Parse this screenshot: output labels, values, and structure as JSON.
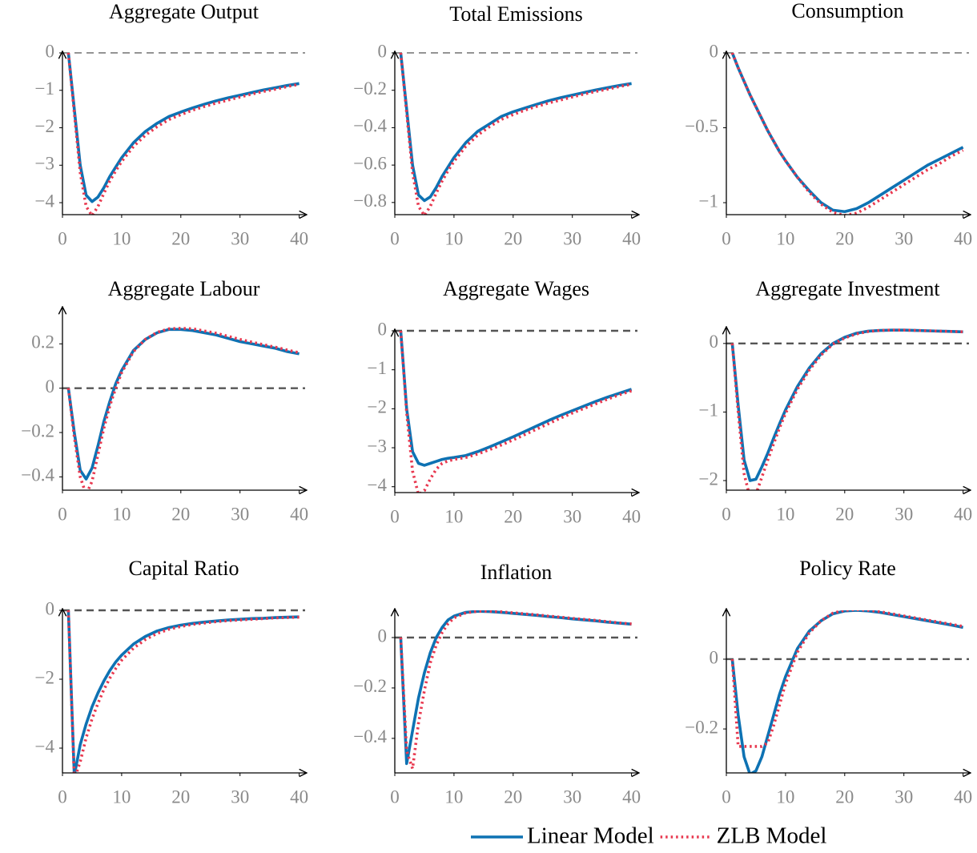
{
  "chart_data": [
    {
      "type": "line",
      "title": "Aggregate Output",
      "x": [
        1,
        2,
        3,
        4,
        5,
        6,
        7,
        8,
        9,
        10,
        12,
        14,
        16,
        18,
        20,
        22,
        24,
        26,
        28,
        30,
        32,
        34,
        36,
        38,
        40
      ],
      "series": [
        {
          "color": "#0e72b3",
          "style": "solid",
          "values": [
            0,
            -1.5,
            -3.0,
            -3.8,
            -3.97,
            -3.85,
            -3.6,
            -3.3,
            -3.05,
            -2.8,
            -2.4,
            -2.1,
            -1.88,
            -1.7,
            -1.58,
            -1.47,
            -1.37,
            -1.28,
            -1.2,
            -1.13,
            -1.06,
            -0.99,
            -0.93,
            -0.87,
            -0.82
          ]
        },
        {
          "color": "#e8384f",
          "style": "dotted",
          "values": [
            0,
            -1.6,
            -3.2,
            -4.1,
            -4.35,
            -4.1,
            -3.75,
            -3.42,
            -3.15,
            -2.9,
            -2.5,
            -2.2,
            -1.97,
            -1.78,
            -1.65,
            -1.53,
            -1.43,
            -1.34,
            -1.26,
            -1.18,
            -1.1,
            -1.03,
            -0.97,
            -0.9,
            -0.84
          ]
        }
      ],
      "xlim": [
        0,
        41
      ],
      "xticks": [
        0,
        10,
        20,
        30,
        40
      ],
      "ylim": [
        -4.32,
        0
      ],
      "yticks": [
        0,
        {
          "value": -1,
          "label": "−1"
        },
        {
          "value": -2,
          "label": "−2"
        },
        {
          "value": -3,
          "label": "−3"
        },
        {
          "value": -4,
          "label": "−4"
        }
      ],
      "hline": 0
    },
    {
      "type": "line",
      "title": "Total Emissions",
      "x": [
        1,
        2,
        3,
        4,
        5,
        6,
        7,
        8,
        9,
        10,
        12,
        14,
        16,
        18,
        20,
        22,
        24,
        26,
        28,
        30,
        32,
        34,
        36,
        38,
        40
      ],
      "series": [
        {
          "color": "#0e72b3",
          "style": "solid",
          "values": [
            0,
            -0.3,
            -0.6,
            -0.76,
            -0.79,
            -0.77,
            -0.72,
            -0.66,
            -0.61,
            -0.56,
            -0.48,
            -0.42,
            -0.38,
            -0.34,
            -0.315,
            -0.295,
            -0.275,
            -0.256,
            -0.24,
            -0.226,
            -0.212,
            -0.198,
            -0.186,
            -0.174,
            -0.164
          ]
        },
        {
          "color": "#e8384f",
          "style": "dotted",
          "values": [
            0,
            -0.32,
            -0.64,
            -0.82,
            -0.87,
            -0.82,
            -0.75,
            -0.685,
            -0.63,
            -0.58,
            -0.5,
            -0.44,
            -0.395,
            -0.356,
            -0.33,
            -0.306,
            -0.286,
            -0.268,
            -0.252,
            -0.236,
            -0.22,
            -0.206,
            -0.194,
            -0.18,
            -0.168
          ]
        }
      ],
      "xlim": [
        0,
        41
      ],
      "xticks": [
        0,
        10,
        20,
        30,
        40
      ],
      "ylim": [
        -0.865,
        0
      ],
      "yticks": [
        0,
        {
          "value": -0.2,
          "label": "−0.2"
        },
        {
          "value": -0.4,
          "label": "−0.4"
        },
        {
          "value": -0.6,
          "label": "−0.6"
        },
        {
          "value": -0.8,
          "label": "−0.8"
        }
      ],
      "hline": 0
    },
    {
      "type": "line",
      "title": "Consumption",
      "x": [
        1,
        2,
        3,
        4,
        5,
        6,
        7,
        8,
        9,
        10,
        12,
        14,
        16,
        18,
        20,
        22,
        24,
        26,
        28,
        30,
        32,
        34,
        36,
        38,
        40
      ],
      "series": [
        {
          "color": "#0e72b3",
          "style": "solid",
          "values": [
            0,
            -0.1,
            -0.19,
            -0.28,
            -0.36,
            -0.44,
            -0.52,
            -0.59,
            -0.66,
            -0.72,
            -0.83,
            -0.92,
            -1.0,
            -1.05,
            -1.06,
            -1.04,
            -1.0,
            -0.95,
            -0.9,
            -0.85,
            -0.8,
            -0.75,
            -0.71,
            -0.67,
            -0.63
          ]
        },
        {
          "color": "#e8384f",
          "style": "dotted",
          "values": [
            0,
            -0.1,
            -0.19,
            -0.28,
            -0.36,
            -0.44,
            -0.52,
            -0.59,
            -0.66,
            -0.72,
            -0.83,
            -0.93,
            -1.01,
            -1.065,
            -1.085,
            -1.07,
            -1.03,
            -0.98,
            -0.93,
            -0.88,
            -0.83,
            -0.78,
            -0.74,
            -0.69,
            -0.65
          ]
        }
      ],
      "xlim": [
        0,
        41
      ],
      "xticks": [
        0,
        10,
        20,
        30,
        40
      ],
      "ylim": [
        -1.08,
        0
      ],
      "yticks": [
        0,
        {
          "value": -0.5,
          "label": "−0.5"
        },
        {
          "value": -1,
          "label": "−1"
        }
      ],
      "hline": 0
    },
    {
      "type": "line",
      "title": "Aggregate Labour",
      "x": [
        1,
        2,
        3,
        4,
        5,
        6,
        7,
        8,
        9,
        10,
        12,
        14,
        16,
        18,
        20,
        22,
        24,
        26,
        28,
        30,
        32,
        34,
        36,
        38,
        40
      ],
      "series": [
        {
          "color": "#0e72b3",
          "style": "solid",
          "values": [
            0,
            -0.2,
            -0.37,
            -0.41,
            -0.36,
            -0.26,
            -0.15,
            -0.06,
            0.02,
            0.08,
            0.17,
            0.22,
            0.25,
            0.265,
            0.265,
            0.26,
            0.25,
            0.24,
            0.225,
            0.21,
            0.2,
            0.19,
            0.18,
            0.165,
            0.155
          ]
        },
        {
          "color": "#e8384f",
          "style": "dotted",
          "values": [
            0,
            -0.22,
            -0.4,
            -0.48,
            -0.42,
            -0.3,
            -0.18,
            -0.08,
            0.0,
            0.07,
            0.165,
            0.22,
            0.252,
            0.268,
            0.27,
            0.268,
            0.258,
            0.248,
            0.234,
            0.22,
            0.208,
            0.196,
            0.185,
            0.172,
            0.16
          ]
        }
      ],
      "xlim": [
        0,
        41
      ],
      "xticks": [
        0,
        10,
        20,
        30,
        40
      ],
      "ylim": [
        -0.46,
        0.36
      ],
      "yticks": [
        0.2,
        0,
        {
          "value": -0.2,
          "label": "−0.2"
        },
        {
          "value": -0.4,
          "label": "−0.4"
        }
      ],
      "hline": 0
    },
    {
      "type": "line",
      "title": "Aggregate Wages",
      "x": [
        1,
        2,
        3,
        4,
        5,
        6,
        7,
        8,
        9,
        10,
        12,
        14,
        16,
        18,
        20,
        22,
        24,
        26,
        28,
        30,
        32,
        34,
        36,
        38,
        40
      ],
      "series": [
        {
          "color": "#0e72b3",
          "style": "solid",
          "values": [
            0,
            -2.0,
            -3.1,
            -3.4,
            -3.45,
            -3.4,
            -3.35,
            -3.3,
            -3.27,
            -3.25,
            -3.2,
            -3.1,
            -2.98,
            -2.85,
            -2.72,
            -2.58,
            -2.44,
            -2.3,
            -2.17,
            -2.05,
            -1.93,
            -1.81,
            -1.7,
            -1.6,
            -1.5
          ]
        },
        {
          "color": "#e8384f",
          "style": "dotted",
          "values": [
            0,
            -2.1,
            -3.6,
            -4.2,
            -4.1,
            -3.8,
            -3.55,
            -3.4,
            -3.34,
            -3.3,
            -3.25,
            -3.16,
            -3.05,
            -2.93,
            -2.8,
            -2.66,
            -2.52,
            -2.38,
            -2.24,
            -2.11,
            -1.99,
            -1.87,
            -1.75,
            -1.64,
            -1.54
          ]
        }
      ],
      "xlim": [
        0,
        41
      ],
      "xticks": [
        0,
        10,
        20,
        30,
        40
      ],
      "ylim": [
        -4.15,
        0
      ],
      "yticks": [
        0,
        {
          "value": -1,
          "label": "−1"
        },
        {
          "value": -2,
          "label": "−2"
        },
        {
          "value": -3,
          "label": "−3"
        },
        {
          "value": -4,
          "label": "−4"
        }
      ],
      "hline": 0
    },
    {
      "type": "line",
      "title": "Aggregate Investment",
      "x": [
        1,
        2,
        3,
        4,
        5,
        6,
        7,
        8,
        9,
        10,
        12,
        14,
        16,
        18,
        20,
        22,
        24,
        26,
        28,
        30,
        32,
        34,
        36,
        38,
        40
      ],
      "series": [
        {
          "color": "#0e72b3",
          "style": "solid",
          "values": [
            0,
            -0.9,
            -1.7,
            -2.0,
            -1.98,
            -1.8,
            -1.6,
            -1.38,
            -1.17,
            -0.97,
            -0.63,
            -0.36,
            -0.15,
            0.0,
            0.09,
            0.15,
            0.18,
            0.19,
            0.195,
            0.195,
            0.19,
            0.185,
            0.18,
            0.175,
            0.17
          ]
        },
        {
          "color": "#e8384f",
          "style": "dotted",
          "values": [
            0,
            -1.0,
            -1.9,
            -2.25,
            -2.2,
            -1.95,
            -1.7,
            -1.46,
            -1.23,
            -1.02,
            -0.67,
            -0.39,
            -0.17,
            -0.01,
            0.08,
            0.14,
            0.175,
            0.19,
            0.195,
            0.195,
            0.19,
            0.185,
            0.18,
            0.175,
            0.17
          ]
        }
      ],
      "xlim": [
        0,
        41
      ],
      "xticks": [
        0,
        10,
        20,
        30,
        40
      ],
      "ylim": [
        -2.14,
        0.22
      ],
      "yticks": [
        0,
        {
          "value": -1,
          "label": "−1"
        },
        {
          "value": -2,
          "label": "−2"
        }
      ],
      "hline": 0
    },
    {
      "type": "line",
      "title": "Capital Ratio",
      "x": [
        1,
        2,
        3,
        4,
        5,
        6,
        7,
        8,
        9,
        10,
        12,
        14,
        16,
        18,
        20,
        22,
        24,
        26,
        28,
        30,
        32,
        34,
        36,
        38,
        40
      ],
      "series": [
        {
          "color": "#0e72b3",
          "style": "solid",
          "values": [
            0,
            -4.8,
            -3.9,
            -3.3,
            -2.8,
            -2.4,
            -2.05,
            -1.75,
            -1.5,
            -1.3,
            -0.98,
            -0.76,
            -0.6,
            -0.5,
            -0.43,
            -0.38,
            -0.34,
            -0.31,
            -0.28,
            -0.26,
            -0.24,
            -0.23,
            -0.21,
            -0.2,
            -0.19
          ]
        },
        {
          "color": "#e8384f",
          "style": "dotted",
          "values": [
            0,
            -4.9,
            -4.4,
            -3.7,
            -3.15,
            -2.7,
            -2.3,
            -1.97,
            -1.69,
            -1.45,
            -1.1,
            -0.85,
            -0.67,
            -0.55,
            -0.47,
            -0.41,
            -0.37,
            -0.33,
            -0.3,
            -0.28,
            -0.26,
            -0.24,
            -0.22,
            -0.21,
            -0.2
          ]
        }
      ],
      "xlim": [
        0,
        41
      ],
      "xticks": [
        0,
        10,
        20,
        30,
        40
      ],
      "ylim": [
        -4.72,
        0
      ],
      "yticks": [
        0,
        {
          "value": -2,
          "label": "−2"
        },
        {
          "value": -4,
          "label": "−4"
        }
      ],
      "hline": 0
    },
    {
      "type": "line",
      "title": "Inflation",
      "x": [
        1,
        2,
        3,
        4,
        5,
        6,
        7,
        8,
        9,
        10,
        12,
        14,
        16,
        18,
        20,
        22,
        24,
        26,
        28,
        30,
        32,
        34,
        36,
        38,
        40
      ],
      "series": [
        {
          "color": "#0e72b3",
          "style": "solid",
          "values": [
            0,
            -0.5,
            -0.37,
            -0.24,
            -0.14,
            -0.06,
            0.0,
            0.04,
            0.07,
            0.085,
            0.1,
            0.104,
            0.103,
            0.1,
            0.096,
            0.092,
            0.088,
            0.083,
            0.079,
            0.074,
            0.07,
            0.066,
            0.061,
            0.057,
            0.053
          ]
        },
        {
          "color": "#e8384f",
          "style": "dotted",
          "values": [
            0,
            -0.45,
            -0.52,
            -0.34,
            -0.21,
            -0.1,
            -0.03,
            0.02,
            0.055,
            0.078,
            0.098,
            0.104,
            0.104,
            0.102,
            0.098,
            0.094,
            0.09,
            0.085,
            0.081,
            0.076,
            0.072,
            0.068,
            0.063,
            0.058,
            0.054
          ]
        }
      ],
      "xlim": [
        0,
        41
      ],
      "xticks": [
        0,
        10,
        20,
        30,
        40
      ],
      "ylim": [
        -0.537,
        0.108
      ],
      "yticks": [
        0,
        {
          "value": -0.2,
          "label": "−0.2"
        },
        {
          "value": -0.4,
          "label": "−0.4"
        }
      ],
      "hline": 0
    },
    {
      "type": "line",
      "title": "Policy Rate",
      "x": [
        1,
        2,
        3,
        4,
        5,
        6,
        7,
        8,
        9,
        10,
        12,
        14,
        16,
        18,
        20,
        22,
        24,
        26,
        28,
        30,
        32,
        34,
        36,
        38,
        40
      ],
      "series": [
        {
          "name": "Linear Model",
          "color": "#0e72b3",
          "style": "solid",
          "values": [
            0,
            -0.16,
            -0.28,
            -0.33,
            -0.32,
            -0.28,
            -0.22,
            -0.16,
            -0.1,
            -0.05,
            0.03,
            0.08,
            0.11,
            0.13,
            0.138,
            0.14,
            0.138,
            0.134,
            0.128,
            0.122,
            0.116,
            0.11,
            0.104,
            0.098,
            0.091
          ]
        },
        {
          "name": "ZLB Model",
          "color": "#e8384f",
          "style": "dotted",
          "values": [
            0,
            -0.25,
            -0.25,
            -0.25,
            -0.25,
            -0.25,
            -0.24,
            -0.19,
            -0.13,
            -0.07,
            0.02,
            0.075,
            0.11,
            0.132,
            0.14,
            0.142,
            0.14,
            0.136,
            0.13,
            0.124,
            0.118,
            0.112,
            0.106,
            0.1,
            0.094
          ]
        }
      ],
      "xlim": [
        0,
        41
      ],
      "xticks": [
        0,
        10,
        20,
        30,
        40
      ],
      "ylim": [
        -0.326,
        0.14
      ],
      "yticks": [
        0,
        {
          "value": -0.2,
          "label": "−0.2"
        }
      ],
      "hline": 0
    }
  ]
}
